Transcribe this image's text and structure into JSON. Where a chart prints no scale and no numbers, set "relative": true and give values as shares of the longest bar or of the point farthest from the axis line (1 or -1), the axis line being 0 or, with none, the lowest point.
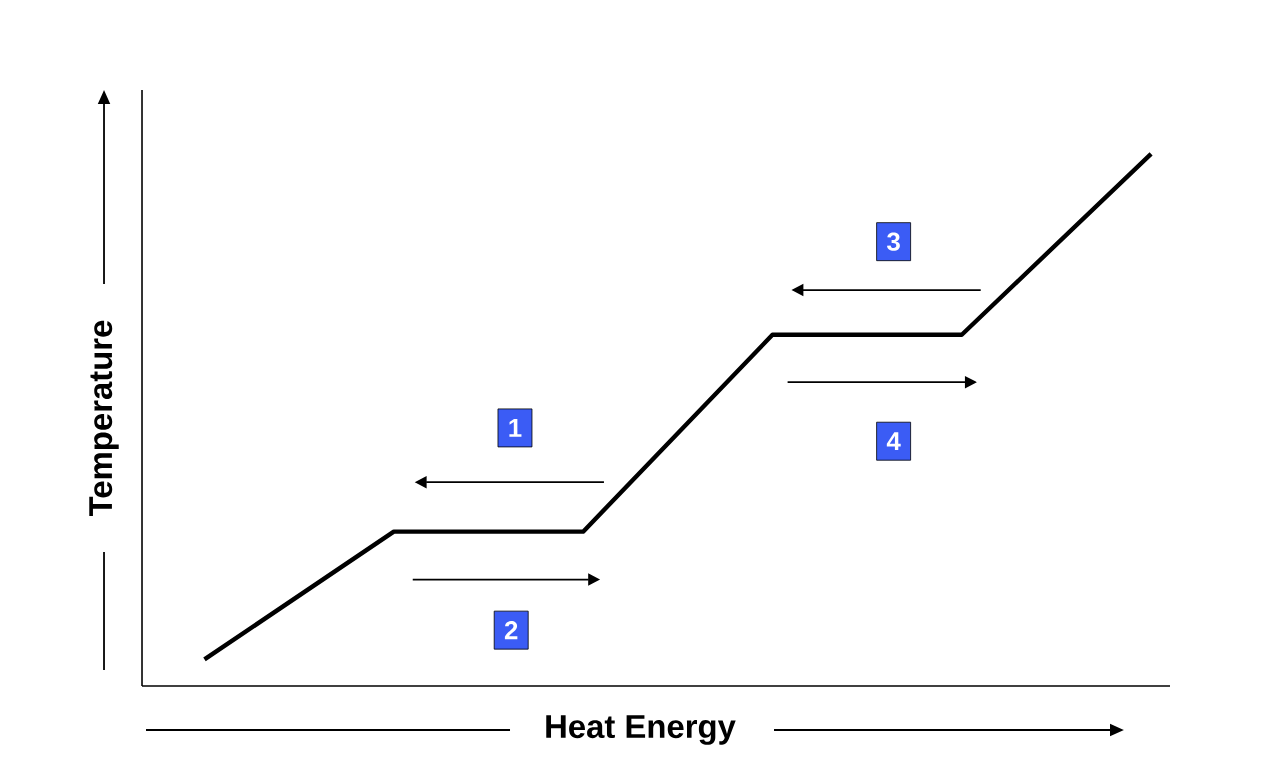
{
  "chart_data": {
    "type": "line",
    "relative": true,
    "xlabel": "Heat Energy",
    "ylabel": "Temperature",
    "categories": [
      null,
      null,
      null,
      null,
      null,
      null
    ],
    "series": [
      {
        "color": "#000000",
        "values": [
          0.05,
          0.29,
          0.29,
          0.66,
          0.66,
          1
        ]
      }
    ],
    "annotations": [
      "1",
      "2",
      "3",
      "4"
    ],
    "marker": "none",
    "line_style": "solid",
    "tick_labels": false
  }
}
